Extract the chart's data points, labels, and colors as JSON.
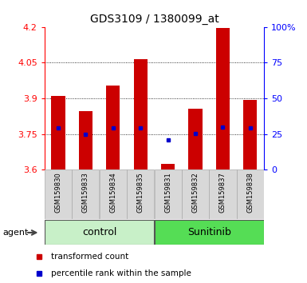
{
  "title": "GDS3109 / 1380099_at",
  "samples": [
    "GSM159830",
    "GSM159833",
    "GSM159834",
    "GSM159835",
    "GSM159831",
    "GSM159832",
    "GSM159837",
    "GSM159838"
  ],
  "red_values": [
    3.91,
    3.845,
    3.955,
    4.065,
    3.625,
    3.855,
    4.195,
    3.895
  ],
  "blue_values": [
    3.775,
    3.748,
    3.775,
    3.775,
    3.726,
    3.752,
    3.778,
    3.775
  ],
  "groups": [
    {
      "label": "control",
      "start": 0,
      "end": 4,
      "color": "#c8f0c8"
    },
    {
      "label": "Sunitinib",
      "start": 4,
      "end": 8,
      "color": "#55dd55"
    }
  ],
  "ylim": [
    3.6,
    4.2
  ],
  "yticks": [
    3.6,
    3.75,
    3.9,
    4.05,
    4.2
  ],
  "ytick_labels": [
    "3.6",
    "3.75",
    "3.9",
    "4.05",
    "4.2"
  ],
  "right_yticks": [
    0,
    25,
    50,
    75,
    100
  ],
  "right_ytick_labels": [
    "0",
    "25",
    "50",
    "75",
    "100%"
  ],
  "grid_values": [
    3.75,
    3.9,
    4.05
  ],
  "bar_color": "#cc0000",
  "dot_color": "#0000cc",
  "bar_width": 0.5,
  "legend_items": [
    {
      "color": "#cc0000",
      "label": "transformed count"
    },
    {
      "color": "#0000cc",
      "label": "percentile rank within the sample"
    }
  ],
  "title_fontsize": 10,
  "axis_fontsize": 8,
  "sample_fontsize": 6,
  "group_fontsize": 9,
  "legend_fontsize": 7.5
}
